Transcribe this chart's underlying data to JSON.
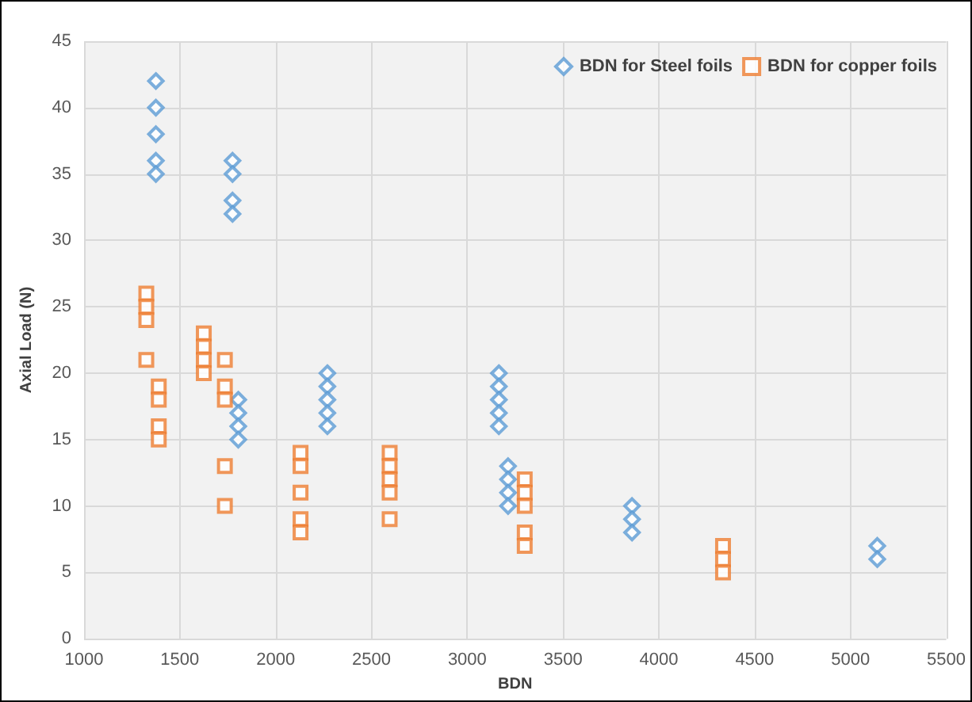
{
  "chart_data": {
    "type": "scatter",
    "xlabel": "BDN",
    "ylabel": "Axial Load (N)",
    "xlim": [
      1000,
      5500
    ],
    "xticks": [
      1000,
      1500,
      2000,
      2500,
      3000,
      3500,
      4000,
      4500,
      5000,
      5500
    ],
    "ylim": [
      0,
      45
    ],
    "yticks": [
      0,
      5,
      10,
      15,
      20,
      25,
      30,
      35,
      40,
      45
    ],
    "grid": true,
    "legend": "top right",
    "series": [
      {
        "name": "BDN for Steel foils",
        "color": "#5b9bd5",
        "marker": "diamond",
        "x": [
          1375,
          1375,
          1375,
          1375,
          1375,
          1775,
          1775,
          1775,
          1775,
          1805,
          1805,
          1805,
          1805,
          2270,
          2270,
          2270,
          2270,
          2270,
          3165,
          3165,
          3165,
          3165,
          3165,
          3213,
          3213,
          3213,
          3213,
          3860,
          3860,
          3860,
          5140,
          5140
        ],
        "values": [
          42,
          40,
          38,
          36,
          35,
          36,
          35,
          33,
          32,
          18,
          17,
          16,
          15,
          20,
          19,
          18,
          17,
          16,
          20,
          19,
          18,
          17,
          16,
          13,
          12,
          11,
          10,
          10,
          9,
          8,
          7,
          6
        ]
      },
      {
        "name": "BDN for copper foils",
        "color": "#ed7d31",
        "marker": "square",
        "x": [
          1325,
          1325,
          1325,
          1325,
          1390,
          1390,
          1390,
          1390,
          1625,
          1625,
          1625,
          1625,
          1735,
          1735,
          1735,
          1735,
          1735,
          2130,
          2130,
          2130,
          2130,
          2130,
          2595,
          2595,
          2595,
          2595,
          2595,
          3300,
          3300,
          3300,
          3300,
          3300,
          4335,
          4335,
          4335
        ],
        "values": [
          26,
          25,
          24,
          21,
          19,
          18,
          16,
          15,
          23,
          22,
          21,
          20,
          21,
          19,
          18,
          13,
          10,
          14,
          13,
          11,
          9,
          8,
          14,
          13,
          12,
          11,
          9,
          12,
          11,
          10,
          8,
          7,
          7,
          6,
          5
        ]
      }
    ]
  }
}
